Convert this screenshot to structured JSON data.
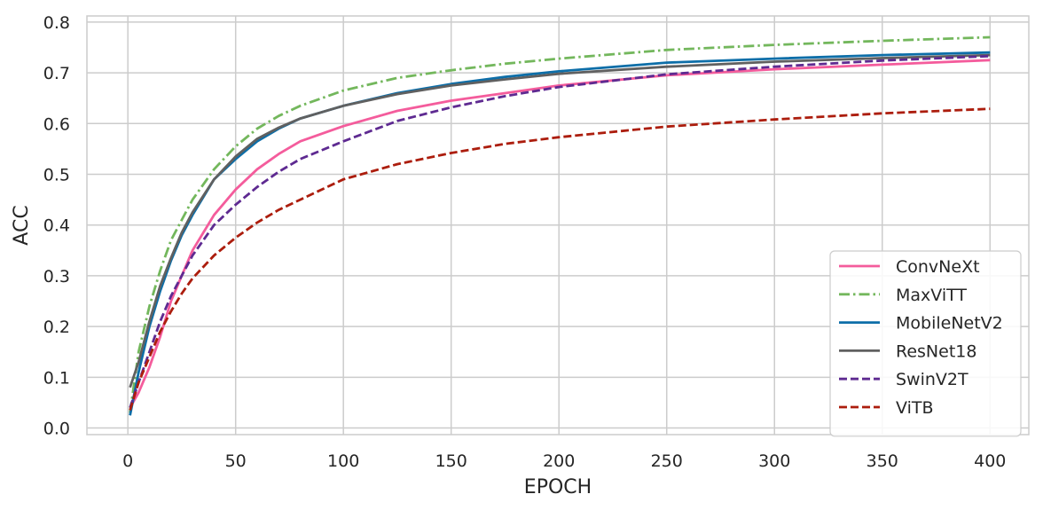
{
  "chart_data": {
    "type": "line",
    "title": "",
    "xlabel": "EPOCH",
    "ylabel": "ACC",
    "xlim": [
      -19,
      418
    ],
    "ylim": [
      -0.013,
      0.812
    ],
    "xticks": [
      0,
      50,
      100,
      150,
      200,
      250,
      300,
      350,
      400
    ],
    "yticks": [
      0.0,
      0.1,
      0.2,
      0.3,
      0.4,
      0.5,
      0.6,
      0.7,
      0.8
    ],
    "xtick_labels": [
      "0",
      "50",
      "100",
      "150",
      "200",
      "250",
      "300",
      "350",
      "400"
    ],
    "ytick_labels": [
      "0.0",
      "0.1",
      "0.2",
      "0.3",
      "0.4",
      "0.5",
      "0.6",
      "0.7",
      "0.8"
    ],
    "grid": true,
    "legend_position": "bottom-right",
    "x": [
      1,
      5,
      10,
      15,
      20,
      25,
      30,
      40,
      50,
      60,
      70,
      80,
      100,
      125,
      150,
      175,
      200,
      250,
      300,
      350,
      400
    ],
    "series": [
      {
        "name": "ConvNeXt",
        "color": "#f45c9c",
        "dash": "solid",
        "values": [
          0.04,
          0.07,
          0.12,
          0.18,
          0.25,
          0.3,
          0.35,
          0.42,
          0.47,
          0.51,
          0.54,
          0.565,
          0.595,
          0.625,
          0.645,
          0.66,
          0.675,
          0.695,
          0.707,
          0.716,
          0.725
        ]
      },
      {
        "name": "MaxViTT",
        "color": "#73b75c",
        "dash": "dashdot",
        "values": [
          0.03,
          0.15,
          0.24,
          0.31,
          0.37,
          0.41,
          0.45,
          0.51,
          0.555,
          0.59,
          0.615,
          0.635,
          0.665,
          0.69,
          0.705,
          0.718,
          0.728,
          0.745,
          0.755,
          0.763,
          0.77
        ]
      },
      {
        "name": "MobileNetV2",
        "color": "#0d6ea8",
        "dash": "solid",
        "values": [
          0.025,
          0.11,
          0.2,
          0.27,
          0.33,
          0.38,
          0.42,
          0.49,
          0.53,
          0.565,
          0.59,
          0.61,
          0.635,
          0.66,
          0.678,
          0.692,
          0.703,
          0.72,
          0.728,
          0.735,
          0.74
        ]
      },
      {
        "name": "ResNet18",
        "color": "#606060",
        "dash": "solid",
        "values": [
          0.08,
          0.13,
          0.21,
          0.28,
          0.335,
          0.385,
          0.425,
          0.49,
          0.535,
          0.57,
          0.592,
          0.61,
          0.635,
          0.658,
          0.675,
          0.687,
          0.698,
          0.712,
          0.722,
          0.729,
          0.735
        ]
      },
      {
        "name": "SwinV2T",
        "color": "#5e2a91",
        "dash": "dashed",
        "values": [
          0.04,
          0.09,
          0.15,
          0.21,
          0.26,
          0.3,
          0.34,
          0.4,
          0.44,
          0.475,
          0.505,
          0.53,
          0.565,
          0.605,
          0.632,
          0.654,
          0.672,
          0.697,
          0.712,
          0.724,
          0.733
        ]
      },
      {
        "name": "ViTB",
        "color": "#ac1d0d",
        "dash": "dashed",
        "values": [
          0.035,
          0.09,
          0.14,
          0.19,
          0.23,
          0.265,
          0.295,
          0.34,
          0.375,
          0.405,
          0.43,
          0.45,
          0.49,
          0.52,
          0.542,
          0.56,
          0.573,
          0.594,
          0.608,
          0.62,
          0.629
        ]
      }
    ]
  }
}
